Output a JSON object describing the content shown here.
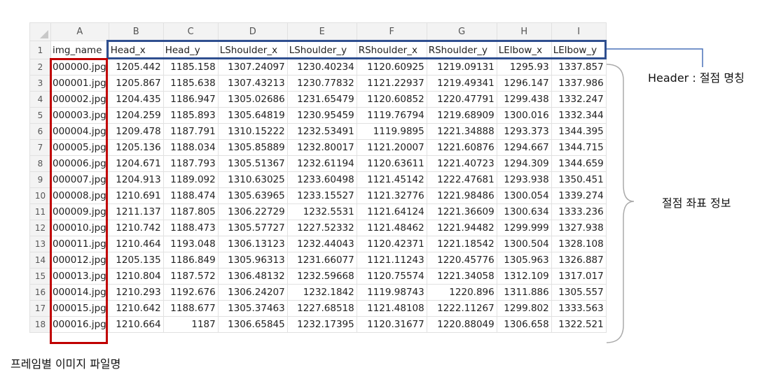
{
  "columns": [
    "A",
    "B",
    "C",
    "D",
    "E",
    "F",
    "G",
    "H",
    "I"
  ],
  "headers": [
    "img_name",
    "Head_x",
    "Head_y",
    "LShoulder_x",
    "LShoulder_y",
    "RShoulder_x",
    "RShoulder_y",
    "LElbow_x",
    "LElbow_y"
  ],
  "rows": [
    [
      "000000.jpg",
      "1205.442",
      "1185.158",
      "1307.24097",
      "1230.40234",
      "1120.60925",
      "1219.09131",
      "1295.93",
      "1337.857"
    ],
    [
      "000001.jpg",
      "1205.867",
      "1185.638",
      "1307.43213",
      "1230.77832",
      "1121.22937",
      "1219.49341",
      "1296.147",
      "1337.986"
    ],
    [
      "000002.jpg",
      "1204.435",
      "1186.947",
      "1305.02686",
      "1231.65479",
      "1120.60852",
      "1220.47791",
      "1299.438",
      "1332.247"
    ],
    [
      "000003.jpg",
      "1204.259",
      "1185.893",
      "1305.64819",
      "1230.95459",
      "1119.76794",
      "1219.68909",
      "1300.016",
      "1332.344"
    ],
    [
      "000004.jpg",
      "1209.478",
      "1187.791",
      "1310.15222",
      "1232.53491",
      "1119.9895",
      "1221.34888",
      "1293.373",
      "1344.395"
    ],
    [
      "000005.jpg",
      "1205.136",
      "1188.034",
      "1305.85889",
      "1232.80017",
      "1121.20007",
      "1221.60876",
      "1294.667",
      "1344.715"
    ],
    [
      "000006.jpg",
      "1204.671",
      "1187.793",
      "1305.51367",
      "1232.61194",
      "1120.63611",
      "1221.40723",
      "1294.309",
      "1344.659"
    ],
    [
      "000007.jpg",
      "1204.913",
      "1189.092",
      "1310.63025",
      "1233.60498",
      "1121.45142",
      "1222.47681",
      "1293.938",
      "1350.451"
    ],
    [
      "000008.jpg",
      "1210.691",
      "1188.474",
      "1305.63965",
      "1233.15527",
      "1121.32776",
      "1221.98486",
      "1300.054",
      "1339.274"
    ],
    [
      "000009.jpg",
      "1211.137",
      "1187.805",
      "1306.22729",
      "1232.5531",
      "1121.64124",
      "1221.36609",
      "1300.634",
      "1333.236"
    ],
    [
      "000010.jpg",
      "1210.742",
      "1188.473",
      "1305.57727",
      "1227.52332",
      "1121.48462",
      "1221.94482",
      "1299.999",
      "1327.938"
    ],
    [
      "000011.jpg",
      "1210.464",
      "1193.048",
      "1306.13123",
      "1232.44043",
      "1120.42371",
      "1221.18542",
      "1300.504",
      "1328.108"
    ],
    [
      "000012.jpg",
      "1205.135",
      "1186.849",
      "1305.96313",
      "1231.66077",
      "1121.11243",
      "1220.45776",
      "1305.963",
      "1326.887"
    ],
    [
      "000013.jpg",
      "1210.804",
      "1187.572",
      "1306.48132",
      "1232.59668",
      "1120.75574",
      "1221.34058",
      "1312.109",
      "1317.017"
    ],
    [
      "000014.jpg",
      "1210.293",
      "1192.676",
      "1306.24207",
      "1232.1842",
      "1119.98743",
      "1220.896",
      "1311.886",
      "1305.557"
    ],
    [
      "000015.jpg",
      "1210.642",
      "1188.677",
      "1305.37463",
      "1227.68518",
      "1121.48108",
      "1222.11267",
      "1299.802",
      "1333.563"
    ],
    [
      "000016.jpg",
      "1210.664",
      "1187",
      "1306.65845",
      "1232.17395",
      "1120.31677",
      "1220.88049",
      "1306.658",
      "1322.521"
    ]
  ],
  "annotations": {
    "header_label": "Header : 절점 명칭",
    "coords_label": "절점 좌표 정보",
    "filename_label": "프레임별 이미지 파일명"
  },
  "colors": {
    "header_box": "#2f4f8f",
    "filename_box": "#c00000",
    "connector": "#4a72b8",
    "brace": "#aaaaaa"
  }
}
